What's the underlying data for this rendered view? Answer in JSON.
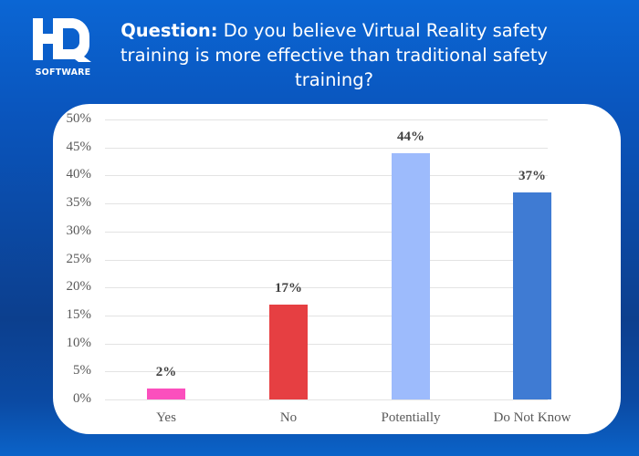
{
  "brand": {
    "logo_mark": "HQ",
    "logo_text": "SOFTWARE"
  },
  "header": {
    "question_prefix": "Question:",
    "question_text": " Do you believe Virtual Reality safety training is more effective than traditional safety training?"
  },
  "colors": {
    "background": "#0b4db0",
    "card": "#ffffff",
    "yes": "#fb4fbd",
    "no": "#e63f42",
    "potentially": "#9dbbfc",
    "do_not_know": "#3f7bd3",
    "gridline": "#e3e3e3"
  },
  "chart_data": {
    "type": "bar",
    "title": "Do you believe Virtual Reality safety training is more effective than traditional safety training?",
    "xlabel": "",
    "ylabel": "",
    "categories": [
      "Yes",
      "No",
      "Potentially",
      "Do Not Know"
    ],
    "values": [
      2,
      17,
      44,
      37
    ],
    "value_labels": [
      "2%",
      "17%",
      "44%",
      "37%"
    ],
    "y_ticks": [
      "0%",
      "5%",
      "10%",
      "15%",
      "20%",
      "25%",
      "30%",
      "35%",
      "40%",
      "45%",
      "50%"
    ],
    "ylim": [
      0,
      50
    ],
    "grid": true,
    "legend": "none",
    "bar_colors": [
      "#fb4fbd",
      "#e63f42",
      "#9dbbfc",
      "#3f7bd3"
    ]
  }
}
